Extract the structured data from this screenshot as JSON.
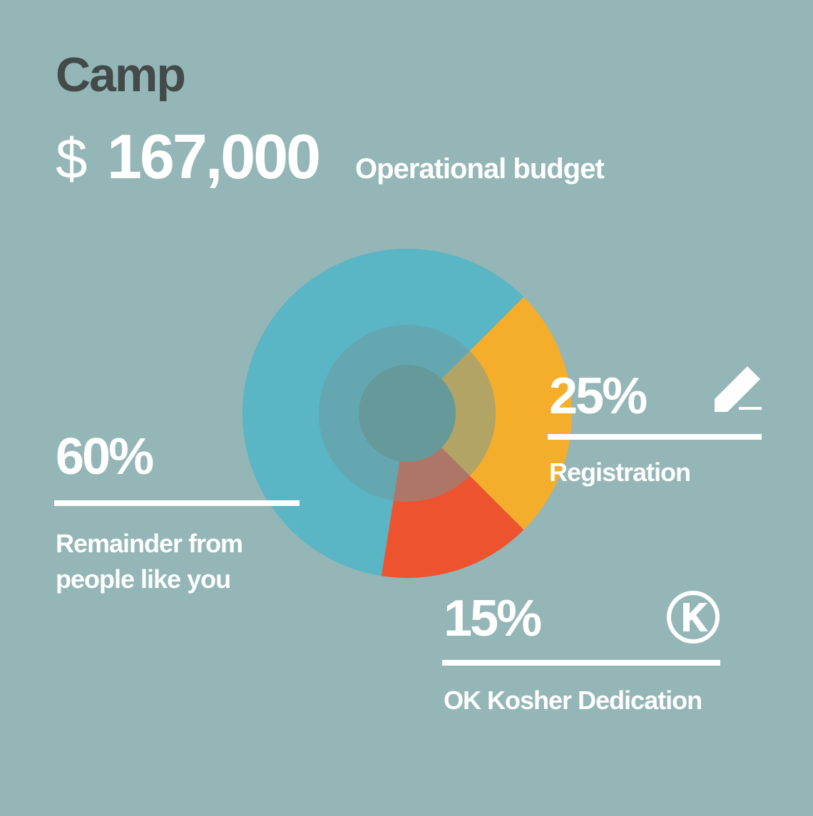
{
  "chart_data": {
    "type": "pie",
    "title": "Camp",
    "budget": {
      "currency": "$",
      "amount": "167,000",
      "label": "Operational budget"
    },
    "categories": [
      "Remainder from people like you",
      "Registration",
      "OK Kosher Dedication"
    ],
    "values": [
      60,
      25,
      15
    ],
    "value_labels": [
      "60%",
      "25%",
      "15%"
    ],
    "colors": [
      "#5ab5c4",
      "#f4ae2c",
      "#ee5330"
    ]
  }
}
